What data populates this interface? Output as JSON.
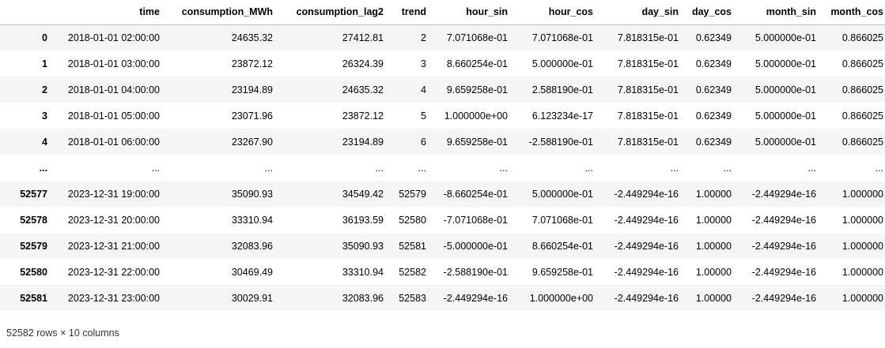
{
  "table": {
    "columns": [
      "",
      "time",
      "consumption_MWh",
      "consumption_lag2",
      "trend",
      "hour_sin",
      "hour_cos",
      "day_sin",
      "day_cos",
      "month_sin",
      "month_cos"
    ],
    "rows": [
      {
        "index": "0",
        "cells": [
          "2018-01-01 02:00:00",
          "24635.32",
          "27412.81",
          "2",
          "7.071068e-01",
          "7.071068e-01",
          "7.818315e-01",
          "0.62349",
          "5.000000e-01",
          "0.866025"
        ]
      },
      {
        "index": "1",
        "cells": [
          "2018-01-01 03:00:00",
          "23872.12",
          "26324.39",
          "3",
          "8.660254e-01",
          "5.000000e-01",
          "7.818315e-01",
          "0.62349",
          "5.000000e-01",
          "0.866025"
        ]
      },
      {
        "index": "2",
        "cells": [
          "2018-01-01 04:00:00",
          "23194.89",
          "24635.32",
          "4",
          "9.659258e-01",
          "2.588190e-01",
          "7.818315e-01",
          "0.62349",
          "5.000000e-01",
          "0.866025"
        ]
      },
      {
        "index": "3",
        "cells": [
          "2018-01-01 05:00:00",
          "23071.96",
          "23872.12",
          "5",
          "1.000000e+00",
          "6.123234e-17",
          "7.818315e-01",
          "0.62349",
          "5.000000e-01",
          "0.866025"
        ]
      },
      {
        "index": "4",
        "cells": [
          "2018-01-01 06:00:00",
          "23267.90",
          "23194.89",
          "6",
          "9.659258e-01",
          "-2.588190e-01",
          "7.818315e-01",
          "0.62349",
          "5.000000e-01",
          "0.866025"
        ]
      },
      {
        "index": "...",
        "cells": [
          "...",
          "...",
          "...",
          "...",
          "...",
          "...",
          "...",
          "...",
          "...",
          "..."
        ]
      },
      {
        "index": "52577",
        "cells": [
          "2023-12-31 19:00:00",
          "35090.93",
          "34549.42",
          "52579",
          "-8.660254e-01",
          "5.000000e-01",
          "-2.449294e-16",
          "1.00000",
          "-2.449294e-16",
          "1.000000"
        ]
      },
      {
        "index": "52578",
        "cells": [
          "2023-12-31 20:00:00",
          "33310.94",
          "36193.59",
          "52580",
          "-7.071068e-01",
          "7.071068e-01",
          "-2.449294e-16",
          "1.00000",
          "-2.449294e-16",
          "1.000000"
        ]
      },
      {
        "index": "52579",
        "cells": [
          "2023-12-31 21:00:00",
          "32083.96",
          "35090.93",
          "52581",
          "-5.000000e-01",
          "8.660254e-01",
          "-2.449294e-16",
          "1.00000",
          "-2.449294e-16",
          "1.000000"
        ]
      },
      {
        "index": "52580",
        "cells": [
          "2023-12-31 22:00:00",
          "30469.49",
          "33310.94",
          "52582",
          "-2.588190e-01",
          "9.659258e-01",
          "-2.449294e-16",
          "1.00000",
          "-2.449294e-16",
          "1.000000"
        ]
      },
      {
        "index": "52581",
        "cells": [
          "2023-12-31 23:00:00",
          "30029.91",
          "32083.96",
          "52583",
          "-2.449294e-16",
          "1.000000e+00",
          "-2.449294e-16",
          "1.00000",
          "-2.449294e-16",
          "1.000000"
        ]
      }
    ]
  },
  "shape_note": "52582 rows × 10 columns",
  "colors": {
    "stripe": "#f5f5f5",
    "header_border": "#bdbdbd",
    "text": "#000000"
  }
}
